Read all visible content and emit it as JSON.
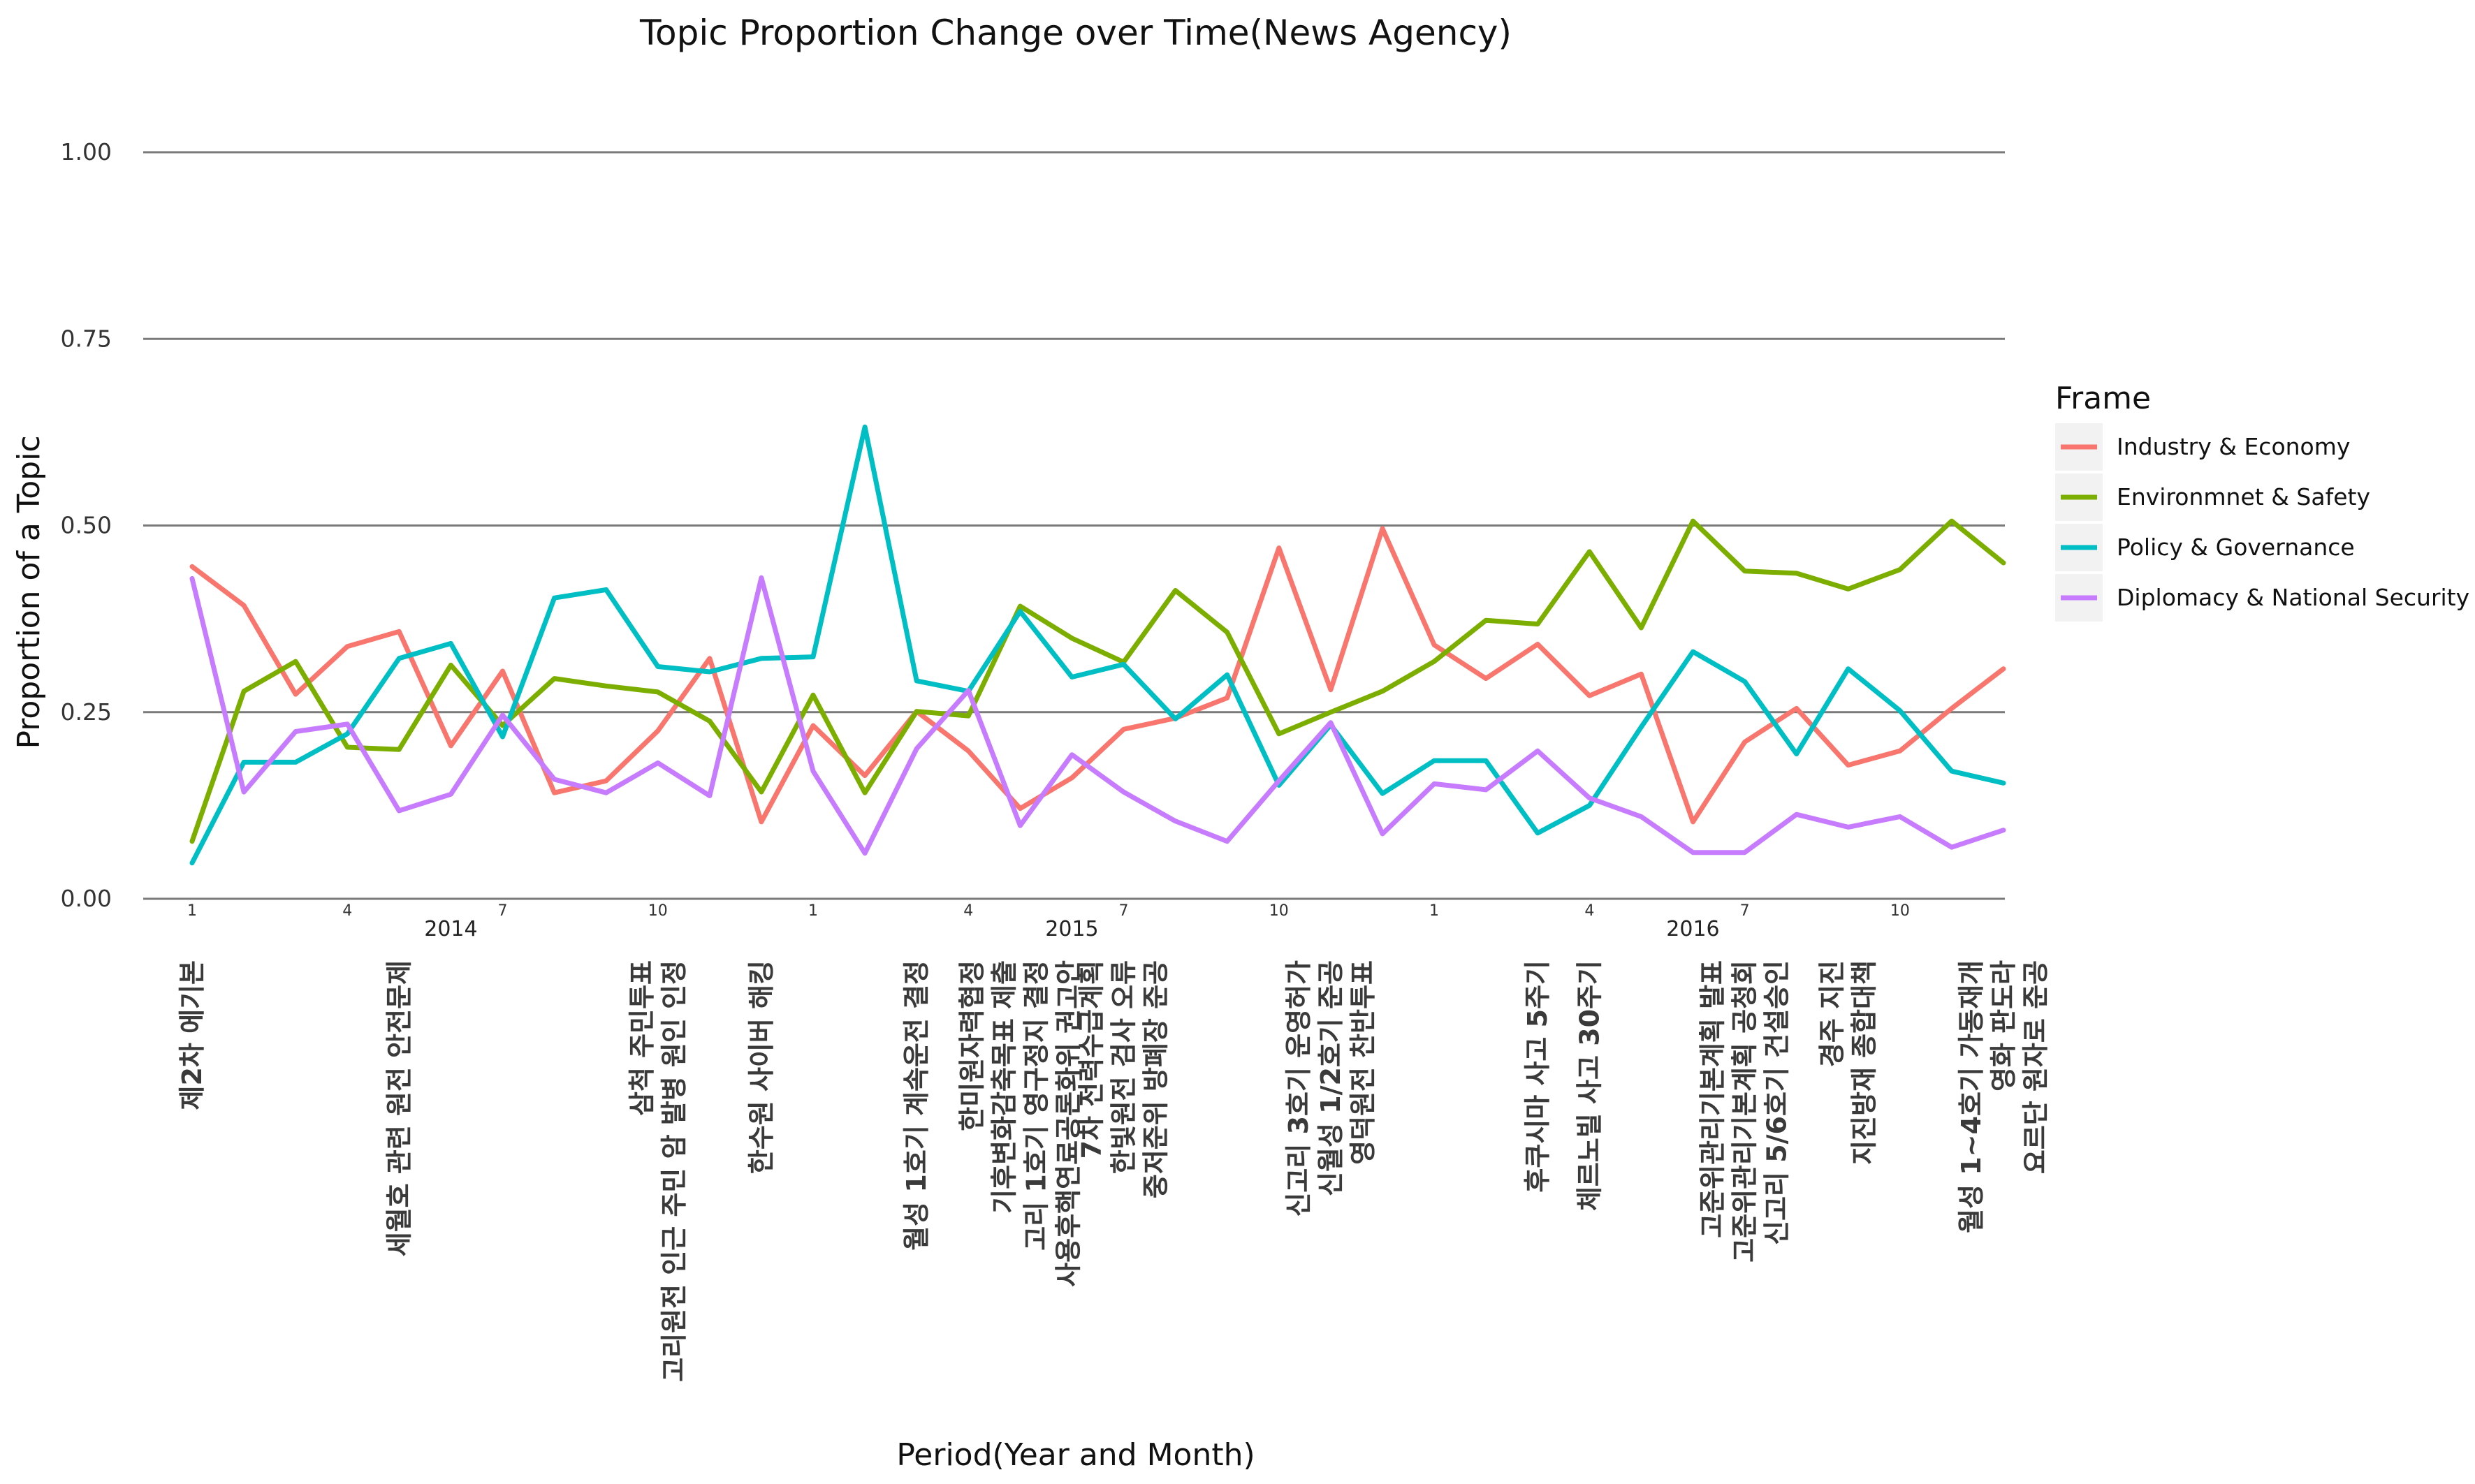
{
  "chart_data": {
    "type": "line",
    "title": "Topic Proportion Change over Time(News Agency)",
    "xlabel": "Period(Year and Month)",
    "ylabel": "Proportion of a Topic",
    "ylim": [
      0,
      1
    ],
    "yticks": [
      "0.00",
      "0.25",
      "0.50",
      "0.75",
      "1.00"
    ],
    "grid": "horizontal",
    "legend_position": "right",
    "legend_title": "Frame",
    "x": [
      "2014-01",
      "2014-02",
      "2014-03",
      "2014-04",
      "2014-05",
      "2014-06",
      "2014-07",
      "2014-08",
      "2014-09",
      "2014-10",
      "2014-11",
      "2014-12",
      "2015-01",
      "2015-02",
      "2015-03",
      "2015-04",
      "2015-05",
      "2015-06",
      "2015-07",
      "2015-08",
      "2015-09",
      "2015-10",
      "2015-11",
      "2015-12",
      "2016-01",
      "2016-02",
      "2016-03",
      "2016-04",
      "2016-05",
      "2016-06",
      "2016-07",
      "2016-08",
      "2016-09",
      "2016-10",
      "2016-11",
      "2016-12"
    ],
    "month_ticks": [
      {
        "index": 0,
        "label": "1"
      },
      {
        "index": 3,
        "label": "4"
      },
      {
        "index": 6,
        "label": "7"
      },
      {
        "index": 9,
        "label": "10"
      },
      {
        "index": 12,
        "label": "1"
      },
      {
        "index": 15,
        "label": "4"
      },
      {
        "index": 18,
        "label": "7"
      },
      {
        "index": 21,
        "label": "10"
      },
      {
        "index": 24,
        "label": "1"
      },
      {
        "index": 27,
        "label": "4"
      },
      {
        "index": 30,
        "label": "7"
      },
      {
        "index": 33,
        "label": "10"
      }
    ],
    "year_labels": [
      {
        "index": 5,
        "label": "2014"
      },
      {
        "index": 17,
        "label": "2015"
      },
      {
        "index": 29,
        "label": "2016"
      }
    ],
    "series": [
      {
        "name": "Industry & Economy",
        "color": "#F8766D",
        "values": [
          0.445,
          0.393,
          0.274,
          0.338,
          0.358,
          0.205,
          0.305,
          0.142,
          0.158,
          0.225,
          0.322,
          0.103,
          0.232,
          0.165,
          0.251,
          0.198,
          0.121,
          0.162,
          0.227,
          0.242,
          0.269,
          0.47,
          0.28,
          0.496,
          0.34,
          0.295,
          0.341,
          0.272,
          0.301,
          0.103,
          0.21,
          0.255,
          0.179,
          0.198,
          0.255,
          0.308
        ]
      },
      {
        "name": "Environmnet & Safety",
        "color": "#7CAE00",
        "values": [
          0.077,
          0.278,
          0.318,
          0.203,
          0.2,
          0.313,
          0.232,
          0.295,
          0.285,
          0.277,
          0.238,
          0.143,
          0.273,
          0.142,
          0.251,
          0.245,
          0.392,
          0.349,
          0.317,
          0.413,
          0.357,
          0.221,
          0.25,
          0.278,
          0.318,
          0.373,
          0.368,
          0.465,
          0.363,
          0.506,
          0.439,
          0.436,
          0.415,
          0.441,
          0.506,
          0.45
        ]
      },
      {
        "name": "Policy & Governance",
        "color": "#00BFC4",
        "values": [
          0.048,
          0.183,
          0.183,
          0.221,
          0.322,
          0.342,
          0.217,
          0.403,
          0.414,
          0.311,
          0.304,
          0.322,
          0.324,
          0.632,
          0.292,
          0.278,
          0.385,
          0.297,
          0.314,
          0.241,
          0.3,
          0.152,
          0.233,
          0.141,
          0.185,
          0.185,
          0.088,
          0.125,
          0.23,
          0.331,
          0.291,
          0.194,
          0.308,
          0.252,
          0.171,
          0.155
        ]
      },
      {
        "name": "Diplomacy & National Security",
        "color": "#C77CFF",
        "values": [
          0.429,
          0.143,
          0.224,
          0.234,
          0.118,
          0.14,
          0.246,
          0.16,
          0.142,
          0.182,
          0.138,
          0.43,
          0.171,
          0.061,
          0.201,
          0.279,
          0.098,
          0.193,
          0.143,
          0.104,
          0.077,
          0.158,
          0.236,
          0.087,
          0.154,
          0.146,
          0.198,
          0.135,
          0.11,
          0.062,
          0.062,
          0.113,
          0.096,
          0.11,
          0.069,
          0.092
        ]
      }
    ],
    "annotations": [
      {
        "index": 0,
        "lines": [
          "제2차 에기본"
        ]
      },
      {
        "index": 4,
        "lines": [
          "세월호 관련 원전 안전문제"
        ]
      },
      {
        "index": 9,
        "lines": [
          "삼척 주민투표",
          "고리원전 인근 주민 암 발병 원인 인정"
        ]
      },
      {
        "index": 11,
        "lines": [
          "한수원 사이버 해킹"
        ]
      },
      {
        "index": 14,
        "lines": [
          "월성 1호기 계속운전 결정"
        ]
      },
      {
        "index": 16,
        "lines": [
          "한미원자력협정",
          "기후변화감축목표 제출",
          "고리 1호기 영구정지 결정",
          "사용후핵연료공론화위 권고안"
        ]
      },
      {
        "index": 18,
        "lines": [
          "7차 전력수급계획",
          "한빛원전 검사 오류",
          "중저준위 방폐장 준공"
        ]
      },
      {
        "index": 22,
        "lines": [
          "신고리 3호기 운영허가",
          "신월성 1/2호기 준공",
          "영덕원전 찬반투표"
        ]
      },
      {
        "index": 26,
        "lines": [
          "후쿠시마 사고 5주기"
        ]
      },
      {
        "index": 27,
        "lines": [
          "체르노빌 사고 30주기"
        ]
      },
      {
        "index": 30,
        "lines": [
          "고준위관리기본계획 발표",
          "고준위관리기본계획 공청회",
          "신고리 5/6호기 건설승인"
        ]
      },
      {
        "index": 32,
        "lines": [
          "경주 지진",
          "지진방재 종합대책"
        ]
      },
      {
        "index": 35,
        "lines": [
          "월성 1~4호기 가동재개",
          "영화 판도라",
          "요르단 원자로 준공"
        ]
      }
    ]
  }
}
